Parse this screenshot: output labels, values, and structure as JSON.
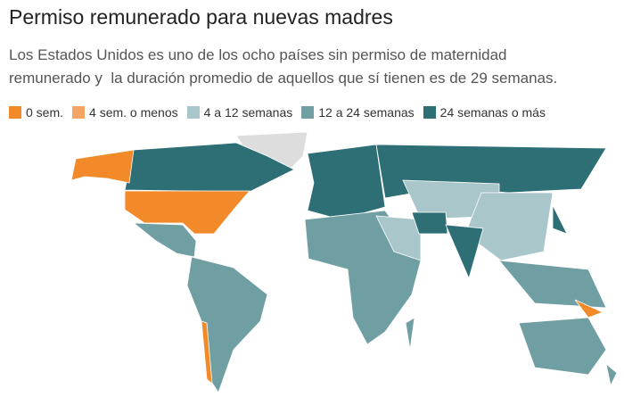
{
  "title": "Permiso remunerado para nuevas madres",
  "subtitle": [
    "Los Estados Unidos es uno de los ocho países sin permiso de maternidad",
    "remunerado y  la duración promedio de aquellos que sí tienen es de 29 semanas."
  ],
  "legend": [
    {
      "label": "0 sem.",
      "color": "#f28a2a"
    },
    {
      "label": "4 sem. o menos",
      "color": "#f4a563"
    },
    {
      "label": "4 a 12 semanas",
      "color": "#a9c7ca"
    },
    {
      "label": "12 a 24 semanas",
      "color": "#6f9fa3"
    },
    {
      "label": "24 semanas o más",
      "color": "#2e6f75"
    }
  ]
}
